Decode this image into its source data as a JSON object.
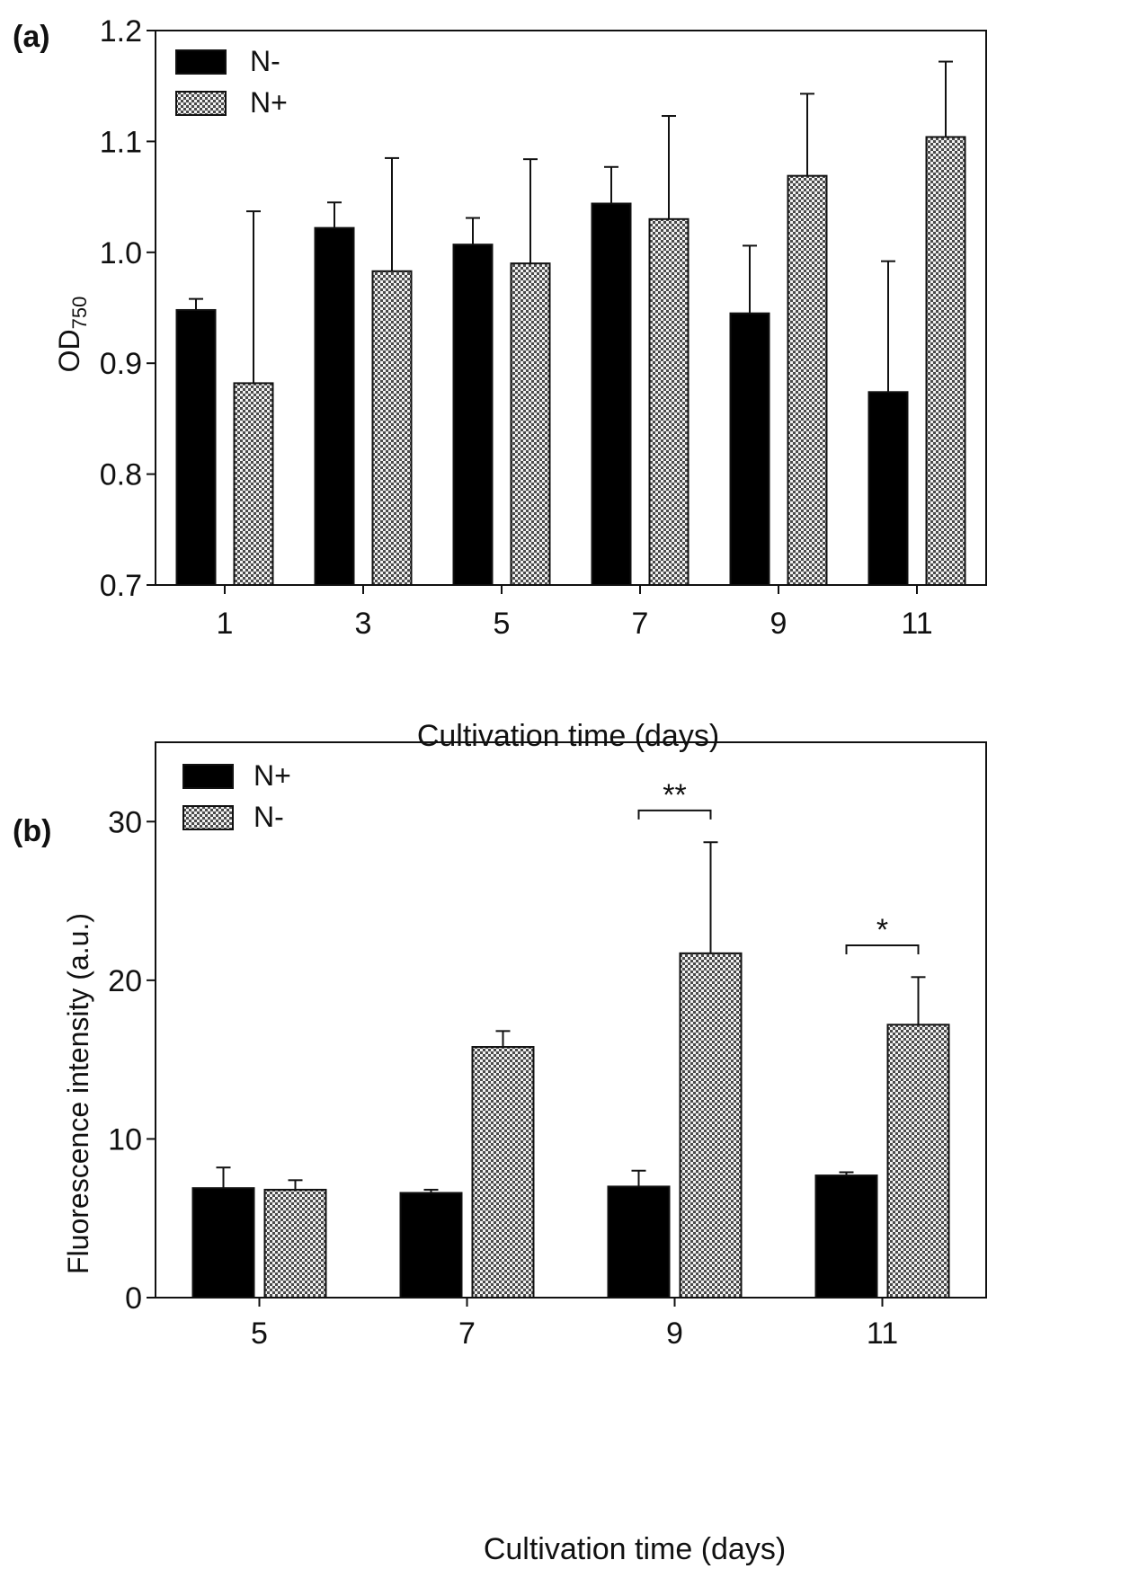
{
  "chart_data": [
    {
      "type": "bar",
      "panel_label": "(a)",
      "title": "",
      "xlabel": "Cultivation time (days)",
      "ylabel_main": "OD",
      "ylabel_sub": "750",
      "categories": [
        "1",
        "3",
        "5",
        "7",
        "9",
        "11"
      ],
      "ylim": [
        0.7,
        1.2
      ],
      "yticks": [
        "0.7",
        "0.8",
        "0.9",
        "1.0",
        "1.1",
        "1.2"
      ],
      "legend_position": "top-left",
      "series": [
        {
          "name": "N-",
          "fill": "solid",
          "values": [
            0.948,
            1.022,
            1.007,
            1.044,
            0.945,
            0.874
          ],
          "errors": [
            0.01,
            0.023,
            0.024,
            0.033,
            0.061,
            0.118
          ]
        },
        {
          "name": "N+",
          "fill": "checker",
          "values": [
            0.882,
            0.983,
            0.99,
            1.03,
            1.069,
            1.104
          ],
          "errors": [
            0.155,
            0.102,
            0.094,
            0.093,
            0.074,
            0.068
          ]
        }
      ],
      "annotations": []
    },
    {
      "type": "bar",
      "panel_label": "(b)",
      "title": "",
      "xlabel": "Cultivation time (days)",
      "ylabel_main": "Fluorescence intensity (a.u.)",
      "ylabel_sub": "",
      "categories": [
        "5",
        "7",
        "9",
        "11"
      ],
      "ylim": [
        0,
        35
      ],
      "yticks": [
        "0",
        "10",
        "20",
        "30"
      ],
      "legend_position": "top-left",
      "series": [
        {
          "name": "N+",
          "fill": "solid",
          "values": [
            6.9,
            6.6,
            7.0,
            7.7
          ],
          "errors": [
            1.3,
            0.2,
            1.0,
            0.2
          ]
        },
        {
          "name": "N-",
          "fill": "checker",
          "values": [
            6.8,
            15.8,
            21.7,
            17.2
          ],
          "errors": [
            0.6,
            1.0,
            7.0,
            3.0
          ]
        }
      ],
      "annotations": [
        {
          "category_index": 2,
          "text": "**",
          "bracket_value": 30.7
        },
        {
          "category_index": 3,
          "text": "*",
          "bracket_value": 22.2
        }
      ]
    }
  ]
}
